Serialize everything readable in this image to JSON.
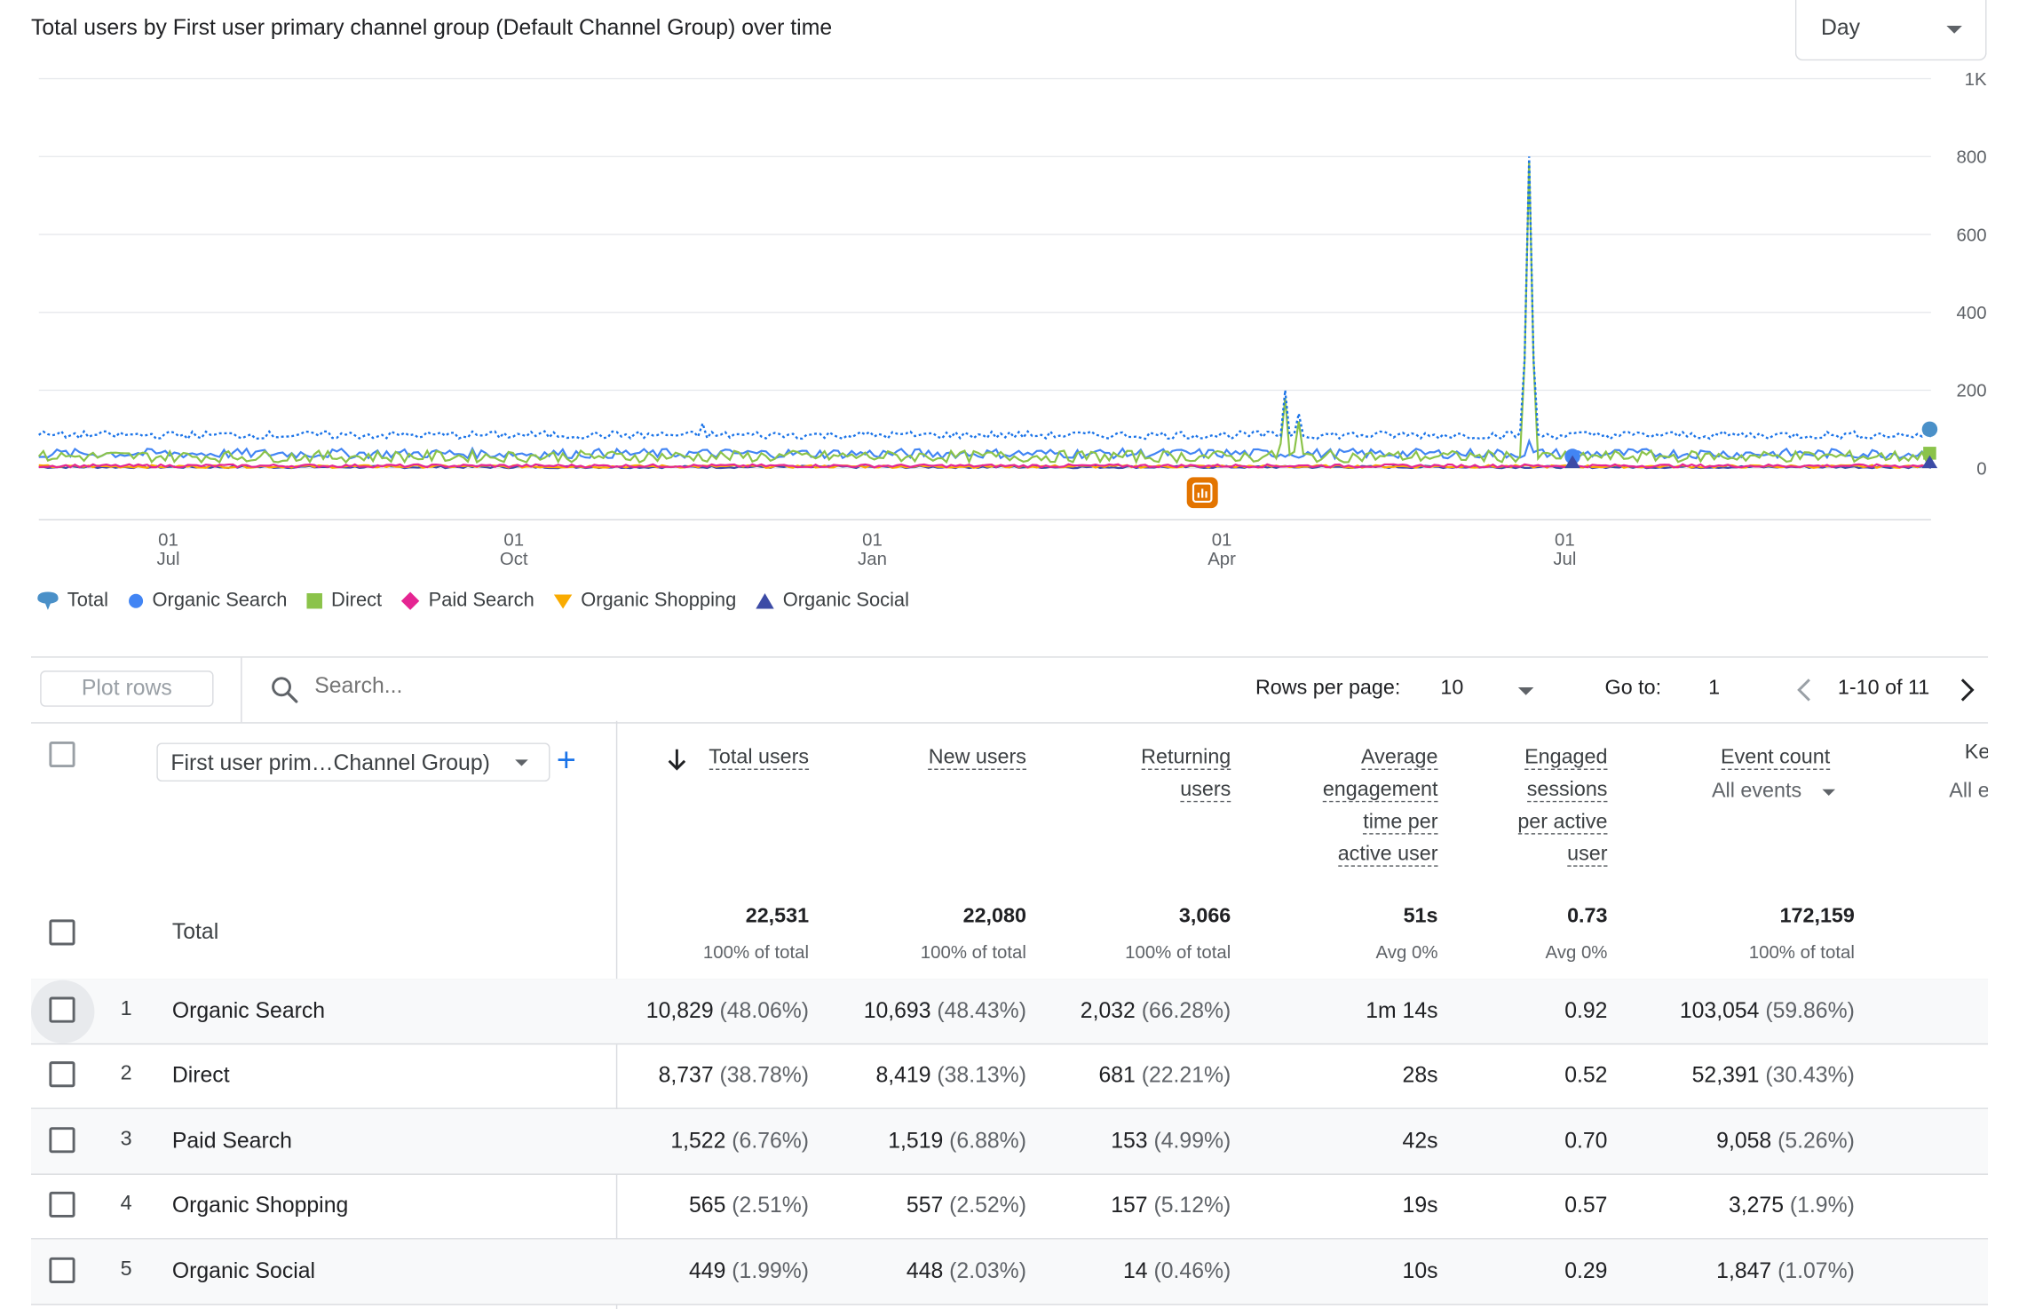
{
  "chart": {
    "title": "Total users by First user primary channel group (Default Channel Group) over time",
    "period_selector": "Day"
  },
  "chart_data": {
    "type": "line",
    "x_ticks": [
      {
        "day": "01",
        "month": "Jul"
      },
      {
        "day": "01",
        "month": "Oct"
      },
      {
        "day": "01",
        "month": "Jan"
      },
      {
        "day": "01",
        "month": "Apr"
      },
      {
        "day": "01",
        "month": "Jul"
      }
    ],
    "y_ticks": [
      "1K",
      "800",
      "600",
      "400",
      "200",
      "0"
    ],
    "ylim": [
      0,
      1000
    ],
    "grid": true,
    "legend_placement": "bottom-left",
    "series": [
      {
        "name": "Total",
        "color": "#1a73e8",
        "style": "dotted",
        "typical": [
          75,
          95
        ],
        "spikes": [
          {
            "at": 0.658,
            "value": 200
          },
          {
            "at": 0.665,
            "value": 140
          },
          {
            "at": 0.35,
            "value": 115
          },
          {
            "at": 0.787,
            "value": 800
          }
        ]
      },
      {
        "name": "Organic Search",
        "color": "#4285f4",
        "style": "solid",
        "typical": [
          25,
          50
        ],
        "spikes": [
          {
            "at": 0.787,
            "value": 70
          }
        ]
      },
      {
        "name": "Direct",
        "color": "#8bc34a",
        "style": "solid",
        "typical": [
          15,
          45
        ],
        "spikes": [
          {
            "at": 0.658,
            "value": 180
          },
          {
            "at": 0.665,
            "value": 120
          },
          {
            "at": 0.787,
            "value": 790
          }
        ]
      },
      {
        "name": "Paid Search",
        "color": "#e52592",
        "style": "solid",
        "typical": [
          2,
          10
        ],
        "spikes": []
      },
      {
        "name": "Organic Shopping",
        "color": "#f9ab00",
        "style": "solid",
        "typical": [
          1,
          8
        ],
        "spikes": []
      },
      {
        "name": "Organic Social",
        "color": "#3c4ba6",
        "style": "solid",
        "typical": [
          0,
          6
        ],
        "spikes": []
      }
    ]
  },
  "legend": [
    {
      "label": "Total",
      "shape": "pin",
      "color": "#4a90c8"
    },
    {
      "label": "Organic Search",
      "shape": "circle",
      "color": "#4285f4"
    },
    {
      "label": "Direct",
      "shape": "square",
      "color": "#8bc34a"
    },
    {
      "label": "Paid Search",
      "shape": "diamond",
      "color": "#e52592"
    },
    {
      "label": "Organic Shopping",
      "shape": "triangle-down",
      "color": "#f9ab00"
    },
    {
      "label": "Organic Social",
      "shape": "triangle-up",
      "color": "#3c4ba6"
    }
  ],
  "toolbar": {
    "plot_rows": "Plot rows",
    "search_placeholder": "Search...",
    "rows_per_page_label": "Rows per page:",
    "rows_per_page_value": "10",
    "go_to_label": "Go to:",
    "go_to_value": "1",
    "page_range": "1-10 of 11"
  },
  "table": {
    "dimension": "First user prim…Channel Group)",
    "headers": {
      "total_users": "Total users",
      "new_users": "New users",
      "returning_1": "Returning",
      "returning_2": "users",
      "avg_1": "Average",
      "avg_2": "engagement",
      "avg_3": "time per",
      "avg_4": "active user",
      "eng_1": "Engaged",
      "eng_2": "sessions",
      "eng_3": "per active",
      "eng_4": "user",
      "event_count": "Event count",
      "event_filter": "All events",
      "key_partial": "Ke",
      "key_sub_partial": "All e"
    },
    "totals": {
      "label": "Total",
      "total_users": "22,531",
      "total_users_sub": "100% of total",
      "new_users": "22,080",
      "new_users_sub": "100% of total",
      "returning": "3,066",
      "returning_sub": "100% of total",
      "avg_time": "51s",
      "avg_time_sub": "Avg 0%",
      "engaged": "0.73",
      "engaged_sub": "Avg 0%",
      "events": "172,159",
      "events_sub": "100% of total"
    },
    "rows": [
      {
        "rank": "1",
        "name": "Organic Search",
        "total_users": "10,829",
        "total_users_pct": "(48.06%)",
        "new_users": "10,693",
        "new_users_pct": "(48.43%)",
        "returning": "2,032",
        "returning_pct": "(66.28%)",
        "avg_time": "1m 14s",
        "engaged": "0.92",
        "events": "103,054",
        "events_pct": "(59.86%)"
      },
      {
        "rank": "2",
        "name": "Direct",
        "total_users": "8,737",
        "total_users_pct": "(38.78%)",
        "new_users": "8,419",
        "new_users_pct": "(38.13%)",
        "returning": "681",
        "returning_pct": "(22.21%)",
        "avg_time": "28s",
        "engaged": "0.52",
        "events": "52,391",
        "events_pct": "(30.43%)"
      },
      {
        "rank": "3",
        "name": "Paid Search",
        "total_users": "1,522",
        "total_users_pct": "(6.76%)",
        "new_users": "1,519",
        "new_users_pct": "(6.88%)",
        "returning": "153",
        "returning_pct": "(4.99%)",
        "avg_time": "42s",
        "engaged": "0.70",
        "events": "9,058",
        "events_pct": "(5.26%)"
      },
      {
        "rank": "4",
        "name": "Organic Shopping",
        "total_users": "565",
        "total_users_pct": "(2.51%)",
        "new_users": "557",
        "new_users_pct": "(2.52%)",
        "returning": "157",
        "returning_pct": "(5.12%)",
        "avg_time": "19s",
        "engaged": "0.57",
        "events": "3,275",
        "events_pct": "(1.9%)"
      },
      {
        "rank": "5",
        "name": "Organic Social",
        "total_users": "449",
        "total_users_pct": "(1.99%)",
        "new_users": "448",
        "new_users_pct": "(2.03%)",
        "returning": "14",
        "returning_pct": "(0.46%)",
        "avg_time": "10s",
        "engaged": "0.29",
        "events": "1,847",
        "events_pct": "(1.07%)"
      }
    ]
  }
}
